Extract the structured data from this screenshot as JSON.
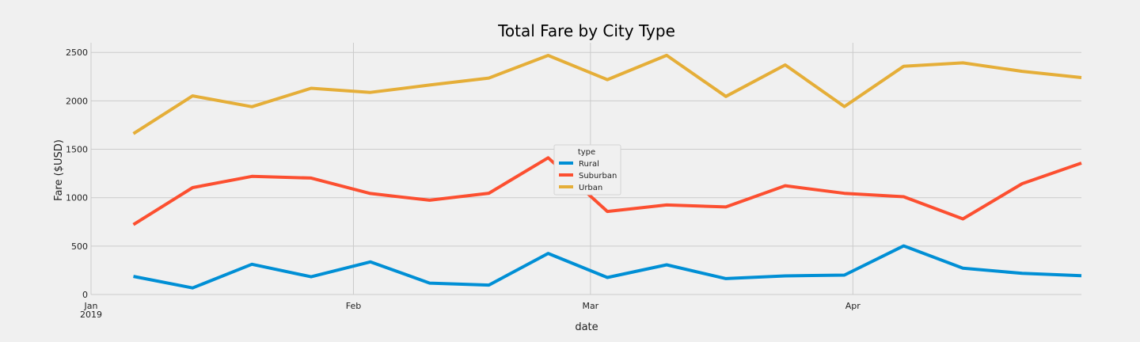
{
  "chart_data": {
    "type": "line",
    "title": "Total Fare by City Type",
    "xlabel": "date",
    "ylabel": "Fare ($USD)",
    "ylim": [
      0,
      2600
    ],
    "yticks": [
      0,
      500,
      1000,
      1500,
      2000,
      2500
    ],
    "x": [
      "2019-01-06",
      "2019-01-13",
      "2019-01-20",
      "2019-01-27",
      "2019-02-03",
      "2019-02-10",
      "2019-02-17",
      "2019-02-24",
      "2019-03-03",
      "2019-03-10",
      "2019-03-17",
      "2019-03-24",
      "2019-03-31",
      "2019-04-07",
      "2019-04-14",
      "2019-04-21",
      "2019-04-28"
    ],
    "xlim": [
      "2019-01-01",
      "2019-04-28"
    ],
    "xticks": [
      {
        "date": "2019-01-01",
        "label": "Jan",
        "sublabel": "2019"
      },
      {
        "date": "2019-02-01",
        "label": "Feb",
        "sublabel": ""
      },
      {
        "date": "2019-03-01",
        "label": "Mar",
        "sublabel": ""
      },
      {
        "date": "2019-04-01",
        "label": "Apr",
        "sublabel": ""
      }
    ],
    "grid": true,
    "legend": {
      "title": "type",
      "placement": "center"
    },
    "series": [
      {
        "name": "Rural",
        "color": "#008fd5",
        "values": [
          187,
          68,
          312,
          183,
          337,
          118,
          97,
          424,
          176,
          307,
          164,
          192,
          200,
          502,
          272,
          218,
          194
        ]
      },
      {
        "name": "Suburban",
        "color": "#fc4f30",
        "values": [
          722,
          1104,
          1220,
          1203,
          1043,
          974,
          1046,
          1412,
          858,
          925,
          904,
          1123,
          1045,
          1010,
          781,
          1145,
          1357
        ]
      },
      {
        "name": "Urban",
        "color": "#e5ae38",
        "values": [
          1661,
          2051,
          1939,
          2130,
          2087,
          2163,
          2235,
          2469,
          2219,
          2470,
          2046,
          2371,
          1941,
          2357,
          2392,
          2305,
          2240
        ]
      }
    ]
  }
}
